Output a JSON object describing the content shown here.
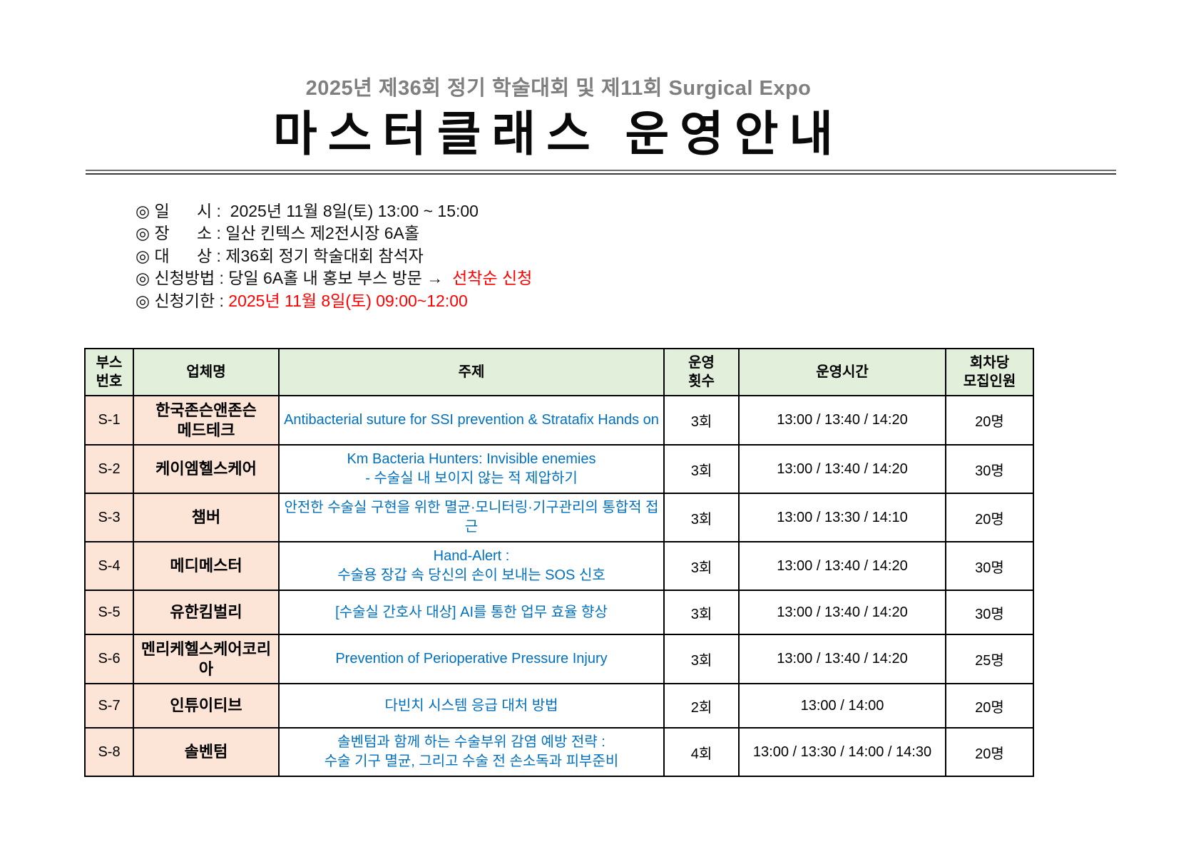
{
  "header": {
    "subtitle": "2025년 제36회 정기 학술대회 및 제11회 Surgical Expo",
    "title": "마스터클래스 운영안내"
  },
  "info": {
    "items": [
      {
        "prefix": "◎ 일      시 :  2025년 11월 8일(토) 13:00 ~ 15:00",
        "highlight": ""
      },
      {
        "prefix": "◎ 장      소 : 일산 킨텍스 제2전시장 6A홀",
        "highlight": ""
      },
      {
        "prefix": "◎ 대      상 : 제36회 정기 학술대회 참석자",
        "highlight": ""
      },
      {
        "prefix": "◎ 신청방법 : 당일 6A홀 내 홍보 부스 방문 →  ",
        "highlight": "선착순 신청"
      },
      {
        "prefix": "◎ 신청기한 : ",
        "highlight": "2025년 11월 8일(토) 09:00~12:00"
      }
    ]
  },
  "table": {
    "headers": {
      "booth": "부스\n번호",
      "company": "업체명",
      "topic": "주제",
      "count": "운영\n횟수",
      "times": "운영시간",
      "capacity": "회차당\n모집인원"
    },
    "rows": [
      {
        "booth": "S-1",
        "company": "한국존슨앤존슨\n메드테크",
        "topic": "Antibacterial suture for SSI prevention &  Stratafix Hands on",
        "count": "3회",
        "times": "13:00 / 13:40 / 14:20",
        "capacity": "20명"
      },
      {
        "booth": "S-2",
        "company": "케이엠헬스케어",
        "topic": "Km Bacteria Hunters: Invisible enemies\n- 수술실 내 보이지 않는 적 제압하기",
        "count": "3회",
        "times": "13:00 / 13:40 / 14:20",
        "capacity": "30명"
      },
      {
        "booth": "S-3",
        "company": "챔버",
        "topic": "안전한 수술실 구현을 위한 멸균·모니터링·기구관리의 통합적 접근",
        "count": "3회",
        "times": "13:00 / 13:30 / 14:10",
        "capacity": "20명"
      },
      {
        "booth": "S-4",
        "company": "메디메스터",
        "topic": "Hand-Alert :\n수술용 장갑 속 당신의 손이 보내는 SOS 신호",
        "count": "3회",
        "times": "13:00 / 13:40 / 14:20",
        "capacity": "30명"
      },
      {
        "booth": "S-5",
        "company": "유한킴벌리",
        "topic": "[수술실 간호사 대상] AI를 통한 업무 효율 향상",
        "count": "3회",
        "times": "13:00 / 13:40 / 14:20",
        "capacity": "30명"
      },
      {
        "booth": "S-6",
        "company": "멘리케헬스케어코리아",
        "topic": "Prevention of Perioperative Pressure Injury",
        "count": "3회",
        "times": "13:00  / 13:40  / 14:20",
        "capacity": "25명"
      },
      {
        "booth": "S-7",
        "company": "인튜이티브",
        "topic": "다빈치 시스템 응급 대처 방법",
        "count": "2회",
        "times": "13:00 / 14:00",
        "capacity": "20명"
      },
      {
        "booth": "S-8",
        "company": "솔벤텀",
        "topic": "솔벤텀과 함께 하는 수술부위 감염 예방 전략 :\n수술 기구 멸균, 그리고 수술 전 손소독과 피부준비",
        "count": "4회",
        "times": "13:00 / 13:30 / 14:00 / 14:30",
        "capacity": "20명"
      }
    ]
  },
  "colors": {
    "topic_blue": "#0070c0",
    "highlight_red": "#ff0000",
    "header_green": "#e2efda",
    "booth_peach": "#fce4d6",
    "subtitle_gray": "#7f7f7f"
  }
}
